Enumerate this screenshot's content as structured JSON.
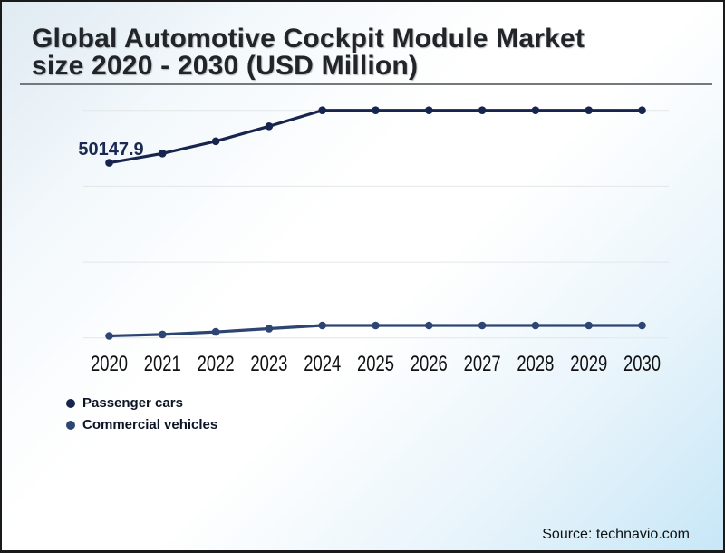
{
  "header": {
    "title_line1": "Global Automotive Cockpit Module Market",
    "title_line2": "size 2020 - 2030 (USD Million)"
  },
  "chart_data": {
    "type": "line",
    "title": "Global Automotive Cockpit Module Market size 2020 - 2030 (USD Million)",
    "categories": [
      "2020",
      "2021",
      "2022",
      "2023",
      "2024",
      "2025",
      "2026",
      "2027",
      "2028",
      "2029",
      "2030"
    ],
    "series": [
      {
        "name": "Passenger cars",
        "color": "#17254e",
        "values": [
          50147.9,
          52800,
          56300,
          60600,
          65160,
          65160,
          65160,
          65160,
          65160,
          65160,
          65160
        ]
      },
      {
        "name": "Commercial vehicles",
        "color": "#2e4573",
        "values": [
          600,
          1000,
          1750,
          2670,
          3580,
          3580,
          3580,
          3580,
          3580,
          3580,
          3580
        ]
      }
    ],
    "data_labels": [
      {
        "text": "50147.9",
        "series_index": 0,
        "point_index": 0
      }
    ],
    "xlabel": "",
    "ylabel": "",
    "ylim": [
      0,
      65160
    ],
    "yaxis_visible": false,
    "grid": "horizontal",
    "gridline_count": 4,
    "legend_position": "bottom-left"
  },
  "colors": {
    "gridline": "#e4e6e6",
    "tick_label": "#111111",
    "title": "#212529",
    "divider": "#75797c",
    "data_label": "#1b2a52",
    "legend_text": "#0c1526"
  },
  "footer": {
    "source": "Source: technavio.com"
  }
}
